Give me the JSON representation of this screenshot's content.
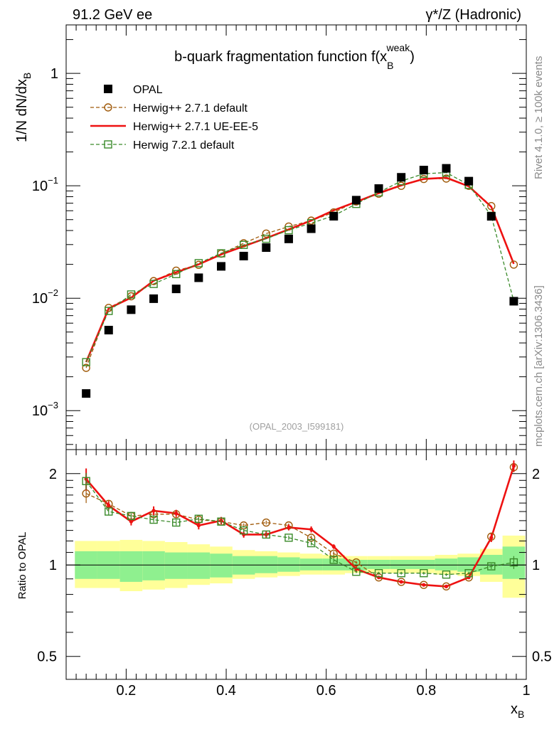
{
  "header": {
    "energy_label": "91.2 GeV ee",
    "process_label": "γ*/Z (Hadronic)"
  },
  "side_labels": {
    "rivet": "Rivet 4.1.0, ≥ 100k events",
    "mcplots": "mcplots.cern.ch [arXiv:1306.3436]"
  },
  "chart_data": [
    {
      "type": "scatter",
      "title": "b-quark fragmentation function f(x_B^weak)",
      "ylabel": "1/N  dN/dx_B",
      "xlabel": "x_B",
      "yscale": "log",
      "xlim": [
        0.08,
        1.0
      ],
      "ylim": [
        0.00045,
        2.7
      ],
      "yticks": [
        {
          "value": 1,
          "base": "1",
          "exp": ""
        },
        {
          "value": 0.1,
          "base": "10",
          "exp": "−1"
        },
        {
          "value": 0.01,
          "base": "10",
          "exp": "−2"
        },
        {
          "value": 0.001,
          "base": "10",
          "exp": "−3"
        }
      ],
      "watermark": "(OPAL_2003_I599181)",
      "legend_position": "top-left",
      "x": [
        0.12,
        0.165,
        0.21,
        0.255,
        0.3,
        0.345,
        0.39,
        0.435,
        0.48,
        0.525,
        0.57,
        0.615,
        0.66,
        0.705,
        0.75,
        0.795,
        0.84,
        0.885,
        0.93,
        0.975
      ],
      "series": [
        {
          "name": "OPAL",
          "color": "#000000",
          "marker": "square-filled",
          "line": "none",
          "values": [
            0.00142,
            0.0052,
            0.0079,
            0.0099,
            0.0121,
            0.0152,
            0.0192,
            0.0237,
            0.0282,
            0.0337,
            0.0415,
            0.0536,
            0.0745,
            0.0945,
            0.119,
            0.138,
            0.143,
            0.11,
            0.0535,
            0.0094
          ]
        },
        {
          "name": "Herwig++ 2.7.1 default",
          "color": "#a05a0a",
          "marker": "circle-open",
          "line": "dashed",
          "values": [
            0.0024,
            0.0082,
            0.0104,
            0.0142,
            0.0176,
            0.0198,
            0.0249,
            0.0308,
            0.0376,
            0.0434,
            0.049,
            0.058,
            0.0725,
            0.085,
            0.1,
            0.115,
            0.116,
            0.1,
            0.066,
            0.0199
          ]
        },
        {
          "name": "Herwig++ 2.7.1 UE-EE-5",
          "color": "#ee1111",
          "marker": "none",
          "line": "solid",
          "values": [
            0.0027,
            0.0081,
            0.0101,
            0.0143,
            0.017,
            0.02,
            0.0245,
            0.029,
            0.0342,
            0.041,
            0.049,
            0.0605,
            0.072,
            0.086,
            0.101,
            0.115,
            0.118,
            0.099,
            0.065,
            0.0202
          ]
        },
        {
          "name": "Herwig 7.2.1 default",
          "color": "#3a8a2a",
          "marker": "square-open",
          "line": "dashed",
          "values": [
            0.0027,
            0.0077,
            0.0108,
            0.0134,
            0.0164,
            0.0205,
            0.0251,
            0.0298,
            0.0338,
            0.0403,
            0.0465,
            0.0541,
            0.069,
            0.0874,
            0.11,
            0.128,
            0.131,
            0.102,
            0.0541,
            0.0094
          ]
        }
      ]
    },
    {
      "type": "scatter",
      "ylabel": "Ratio to OPAL",
      "xlabel": "x_B",
      "yscale": "log",
      "xlim": [
        0.08,
        1.0
      ],
      "ylim": [
        0.42,
        2.4
      ],
      "yticks": [
        {
          "value": 0.5,
          "label": "0.5"
        },
        {
          "value": 1,
          "label": "1"
        },
        {
          "value": 2,
          "label": "2"
        }
      ],
      "xticks": [
        {
          "value": 0.2,
          "label": "0.2"
        },
        {
          "value": 0.4,
          "label": "0.4"
        },
        {
          "value": 0.6,
          "label": "0.6"
        },
        {
          "value": 0.8,
          "label": "0.8"
        },
        {
          "value": 1,
          "label": "1"
        }
      ],
      "reference_line": 1,
      "x": [
        0.12,
        0.165,
        0.21,
        0.255,
        0.3,
        0.345,
        0.39,
        0.435,
        0.48,
        0.525,
        0.57,
        0.615,
        0.66,
        0.705,
        0.75,
        0.795,
        0.84,
        0.885,
        0.93,
        0.975
      ],
      "uncertainty_bands": {
        "stat_color": "#8ff08f",
        "total_color": "#ffff99",
        "stat": [
          [
            0.9,
            1.11
          ],
          [
            0.9,
            1.11
          ],
          [
            0.88,
            1.11
          ],
          [
            0.89,
            1.11
          ],
          [
            0.9,
            1.1
          ],
          [
            0.9,
            1.1
          ],
          [
            0.91,
            1.09
          ],
          [
            0.93,
            1.07
          ],
          [
            0.94,
            1.07
          ],
          [
            0.95,
            1.06
          ],
          [
            0.96,
            1.05
          ],
          [
            0.96,
            1.05
          ],
          [
            0.96,
            1.04
          ],
          [
            0.97,
            1.04
          ],
          [
            0.97,
            1.04
          ],
          [
            0.97,
            1.04
          ],
          [
            0.96,
            1.05
          ],
          [
            0.95,
            1.06
          ],
          [
            0.93,
            1.08
          ],
          [
            0.9,
            1.15
          ]
        ],
        "total": [
          [
            0.84,
            1.2
          ],
          [
            0.84,
            1.2
          ],
          [
            0.82,
            1.21
          ],
          [
            0.83,
            1.2
          ],
          [
            0.84,
            1.19
          ],
          [
            0.86,
            1.17
          ],
          [
            0.87,
            1.15
          ],
          [
            0.9,
            1.12
          ],
          [
            0.91,
            1.11
          ],
          [
            0.92,
            1.1
          ],
          [
            0.93,
            1.09
          ],
          [
            0.93,
            1.08
          ],
          [
            0.94,
            1.07
          ],
          [
            0.94,
            1.07
          ],
          [
            0.94,
            1.07
          ],
          [
            0.94,
            1.07
          ],
          [
            0.93,
            1.08
          ],
          [
            0.92,
            1.09
          ],
          [
            0.88,
            1.13
          ],
          [
            0.78,
            1.25
          ]
        ]
      },
      "series": [
        {
          "name": "Herwig++ 2.7.1 default",
          "color": "#a05a0a",
          "marker": "circle-open",
          "line": "dashed",
          "values": [
            1.72,
            1.59,
            1.45,
            1.47,
            1.47,
            1.41,
            1.39,
            1.35,
            1.38,
            1.35,
            1.23,
            1.09,
            1.02,
            0.91,
            0.88,
            0.86,
            0.85,
            0.91,
            1.24,
            2.1
          ],
          "err": [
            0.12,
            0.04,
            0.03,
            0.03,
            0.03,
            0.02,
            0.02,
            0.02,
            0.02,
            0.02,
            0.02,
            0.02,
            0.01,
            0.01,
            0.01,
            0.01,
            0.01,
            0.01,
            0.03,
            0.08
          ]
        },
        {
          "name": "Herwig++ 2.7.1 UE-EE-5",
          "color": "#ee1111",
          "marker": "none",
          "line": "solid",
          "values": [
            1.92,
            1.57,
            1.39,
            1.51,
            1.48,
            1.35,
            1.4,
            1.26,
            1.26,
            1.33,
            1.31,
            1.15,
            0.97,
            0.91,
            0.88,
            0.86,
            0.85,
            0.91,
            1.23,
            2.12
          ],
          "err": [
            0.16,
            0.05,
            0.04,
            0.05,
            0.04,
            0.04,
            0.04,
            0.03,
            0.03,
            0.03,
            0.03,
            0.02,
            0.02,
            0.01,
            0.01,
            0.01,
            0.01,
            0.01,
            0.04,
            0.09
          ]
        },
        {
          "name": "Herwig 7.2.1 default",
          "color": "#3a8a2a",
          "marker": "square-open",
          "line": "dashed",
          "values": [
            1.89,
            1.5,
            1.45,
            1.41,
            1.38,
            1.42,
            1.39,
            1.3,
            1.26,
            1.23,
            1.18,
            1.04,
            0.95,
            0.94,
            0.94,
            0.94,
            0.93,
            0.94,
            0.99,
            1.02
          ],
          "err": [
            0.12,
            0.04,
            0.03,
            0.03,
            0.03,
            0.02,
            0.02,
            0.02,
            0.02,
            0.02,
            0.02,
            0.02,
            0.01,
            0.01,
            0.01,
            0.01,
            0.01,
            0.01,
            0.02,
            0.05
          ]
        }
      ]
    }
  ]
}
